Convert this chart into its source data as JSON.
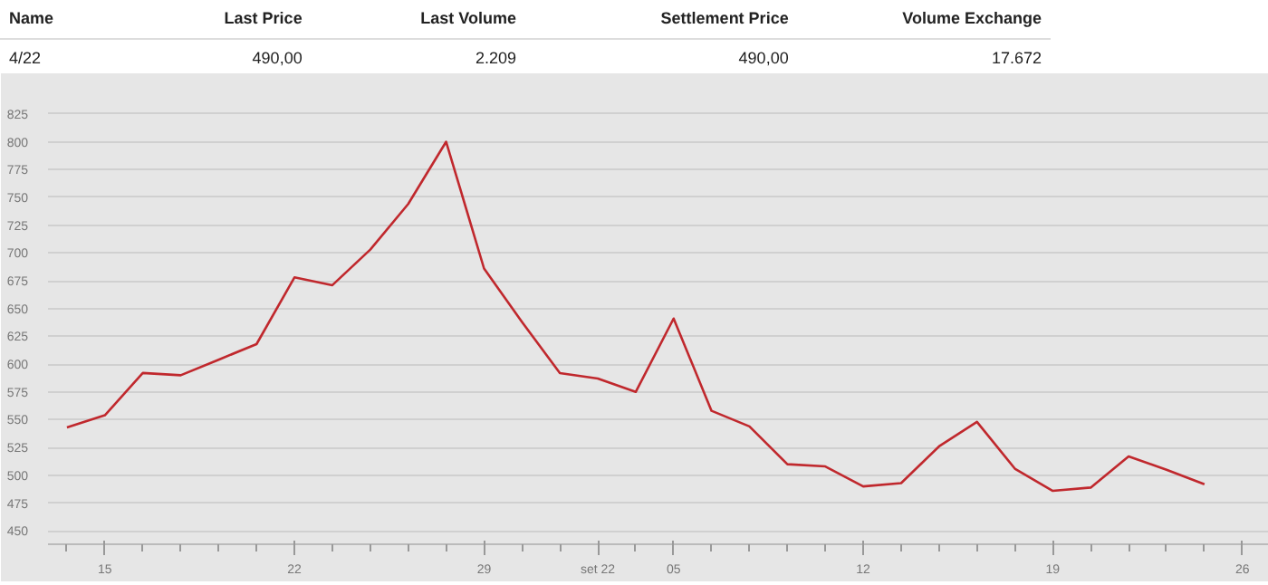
{
  "chart_data": {
    "type": "line",
    "annotations": [
      "Name",
      "Last Price",
      "Last Volume",
      "Settlement Price",
      "Volume Exchange",
      "4/22",
      "490,00",
      "2.209",
      "490,00",
      "17.672"
    ],
    "categories": [
      null,
      "15",
      null,
      null,
      null,
      null,
      "22",
      null,
      null,
      null,
      null,
      "29",
      null,
      null,
      "set 22",
      null,
      "05",
      null,
      null,
      null,
      null,
      "12",
      null,
      null,
      null,
      null,
      "19",
      null,
      null,
      null,
      null,
      "26"
    ],
    "series": [
      {
        "color": "#c0282d",
        "values": [
          543,
          554,
          592,
          590,
          604,
          618,
          678,
          671,
          703,
          744,
          800,
          686,
          638,
          592,
          587,
          575,
          641,
          558,
          544,
          510,
          508,
          490,
          493,
          526,
          548,
          506,
          486,
          489,
          517,
          505,
          492,
          null
        ]
      }
    ],
    "ylim": [
      438,
      855
    ],
    "yticks": [
      450,
      475,
      500,
      525,
      550,
      575,
      600,
      625,
      650,
      675,
      700,
      725,
      750,
      775,
      800,
      825
    ],
    "grid": "y",
    "marker": "none",
    "line_style": "solid"
  }
}
